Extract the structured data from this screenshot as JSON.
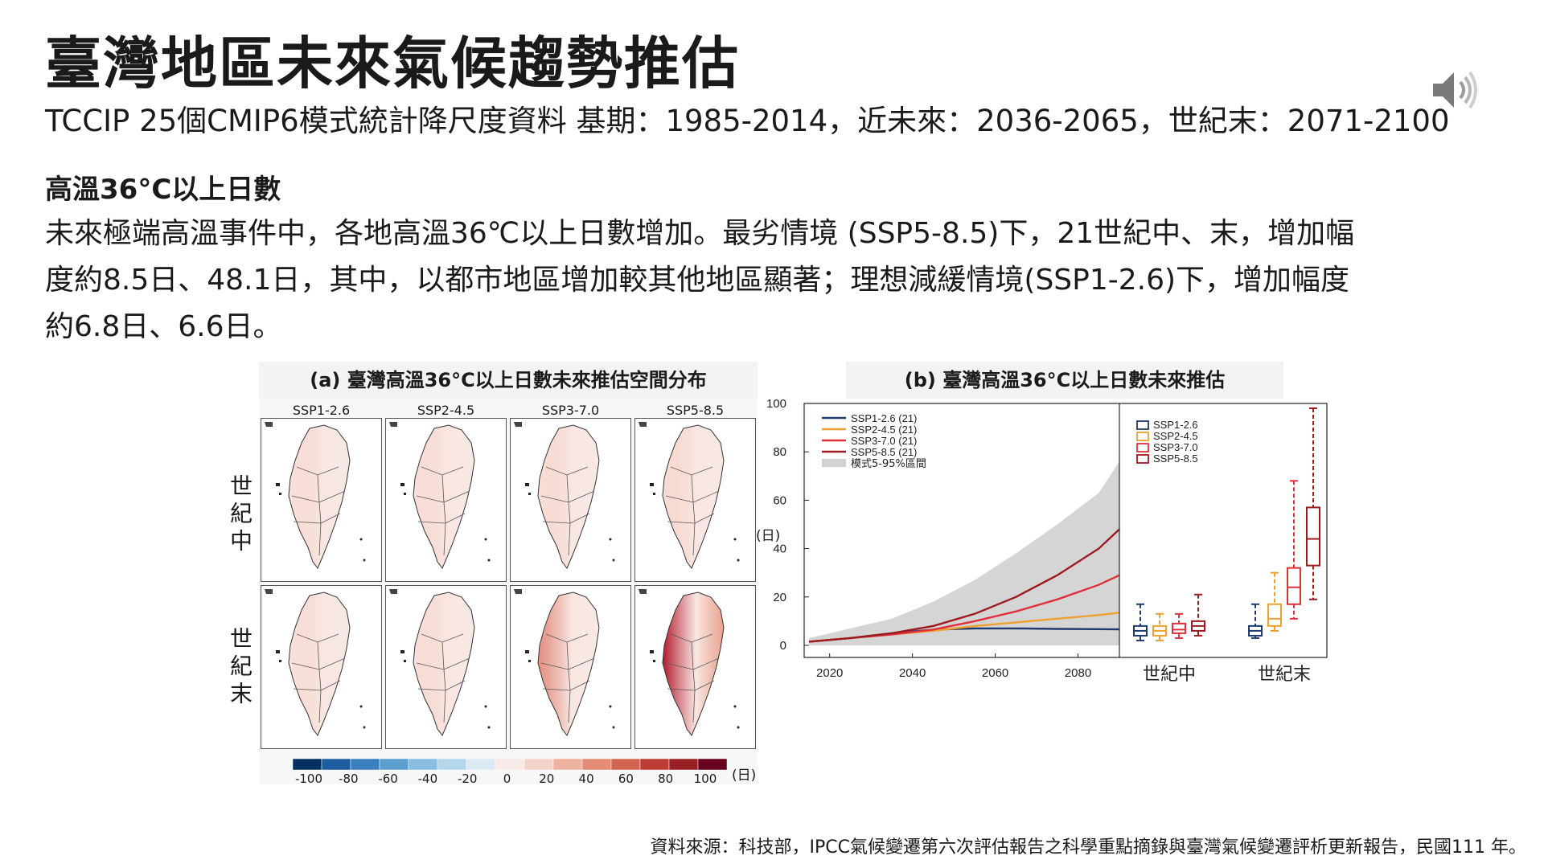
{
  "slide": {
    "title": "臺灣地區未來氣候趨勢推估",
    "subtitle": "TCCIP 25個CMIP6模式統計降尺度資料 基期：1985-2014，近未來：2036-2065，世紀末：2071-2100",
    "section_heading": "高溫36°C以上日數",
    "body_lines": [
      "未來極端高溫事件中，各地高溫36℃以上日數增加。最劣情境 (SSP5-8.5)下，21世紀中、末，增加幅",
      "度約8.5日、48.1日，其中，以都市地區增加較其他地區顯著；理想減緩情境(SSP1-2.6)下，增加幅度",
      "約6.8日、6.6日。"
    ],
    "source": "資料來源：科技部，IPCC氣候變遷第六次評估報告之科學重點摘錄與臺灣氣候變遷評析更新報告，民國111 年。",
    "speaker_icon": "speaker-icon"
  },
  "panel_a": {
    "title": "(a) 臺灣高溫36°C以上日數未來推估空間分布",
    "scenarios": [
      "SSP1-2.6",
      "SSP2-4.5",
      "SSP3-7.0",
      "SSP5-8.5"
    ],
    "row_labels": [
      "世紀中",
      "世紀末"
    ],
    "colorbar_ticks": [
      "-100",
      "-80",
      "-60",
      "-40",
      "-20",
      "0",
      "20",
      "40",
      "60",
      "80",
      "100"
    ],
    "colorbar_unit": "(日)",
    "colorbar_colors": [
      "#053061",
      "#1d5c9e",
      "#3a7fbf",
      "#5a9fd0",
      "#88bde0",
      "#b4d6ea",
      "#dbe9f2",
      "#f8eae6",
      "#f5d2c7",
      "#efb2a0",
      "#e48c75",
      "#d2654f",
      "#bb3d35",
      "#982023",
      "#67001f"
    ],
    "heat_intensity": [
      [
        0.12,
        0.14,
        0.16,
        0.2
      ],
      [
        0.1,
        0.15,
        0.45,
        0.8
      ]
    ]
  },
  "panel_b": {
    "title": "(b) 臺灣高溫36°C以上日數未來推估",
    "unit": "(日)",
    "period_labels": [
      "世紀中",
      "世紀末"
    ],
    "colors": {
      "SSP1-2.6": "#1f3a6e",
      "SSP2-4.5": "#f0a030",
      "SSP3-7.0": "#e0303a",
      "SSP5-8.5": "#9c1a20",
      "band": "#d0d0d0"
    }
  },
  "chart_data": [
    {
      "type": "line",
      "title": "(b) 臺灣高溫36°C以上日數未來推估",
      "ylabel": "(日)",
      "x": [
        2015,
        2025,
        2035,
        2045,
        2055,
        2065,
        2075,
        2085,
        2090
      ],
      "xticks": [
        2020,
        2040,
        2060,
        2080
      ],
      "yticks": [
        0,
        20,
        40,
        60,
        80,
        100
      ],
      "xlim": [
        2015,
        2090
      ],
      "ylim": [
        -5,
        100
      ],
      "series": [
        {
          "name": "SSP1-2.6 (21)",
          "values": [
            1.5,
            3,
            5,
            6.5,
            7,
            7,
            6.8,
            6.7,
            6.6
          ]
        },
        {
          "name": "SSP2-4.5 (21)",
          "values": [
            1.5,
            3,
            4.5,
            6,
            8,
            9.5,
            11,
            12.5,
            13.5
          ]
        },
        {
          "name": "SSP3-7.0 (21)",
          "values": [
            1.5,
            3,
            4.5,
            6.5,
            10,
            14,
            19,
            25,
            29
          ]
        },
        {
          "name": "SSP5-8.5 (21)",
          "values": [
            1.5,
            3,
            5,
            8,
            13,
            20,
            29,
            40,
            48
          ]
        }
      ],
      "band": {
        "name": "模式5-95%區間",
        "lower": [
          0,
          0,
          0,
          0,
          0,
          0,
          0,
          0,
          0
        ],
        "upper": [
          3,
          7,
          11,
          18,
          27,
          38,
          50,
          63,
          76
        ]
      },
      "legend": "top-left"
    },
    {
      "type": "box",
      "categories": [
        "世紀中",
        "世紀末"
      ],
      "legend": "top-left",
      "series": [
        {
          "name": "SSP1-2.6",
          "boxes": [
            {
              "min": 2,
              "q1": 4,
              "median": 6,
              "q3": 8,
              "max": 17
            },
            {
              "min": 3,
              "q1": 4,
              "median": 6,
              "q3": 8,
              "max": 17
            }
          ]
        },
        {
          "name": "SSP2-4.5",
          "boxes": [
            {
              "min": 2,
              "q1": 4,
              "median": 6,
              "q3": 8,
              "max": 13
            },
            {
              "min": 6,
              "q1": 8,
              "median": 11,
              "q3": 17,
              "max": 30
            }
          ]
        },
        {
          "name": "SSP3-7.0",
          "boxes": [
            {
              "min": 3,
              "q1": 5,
              "median": 6.5,
              "q3": 9,
              "max": 13
            },
            {
              "min": 11,
              "q1": 17,
              "median": 24,
              "q3": 32,
              "max": 68
            }
          ]
        },
        {
          "name": "SSP5-8.5",
          "boxes": [
            {
              "min": 4,
              "q1": 6,
              "median": 8,
              "q3": 10,
              "max": 21
            },
            {
              "min": 19,
              "q1": 33,
              "median": 44,
              "q3": 57,
              "max": 98
            }
          ]
        }
      ]
    }
  ]
}
